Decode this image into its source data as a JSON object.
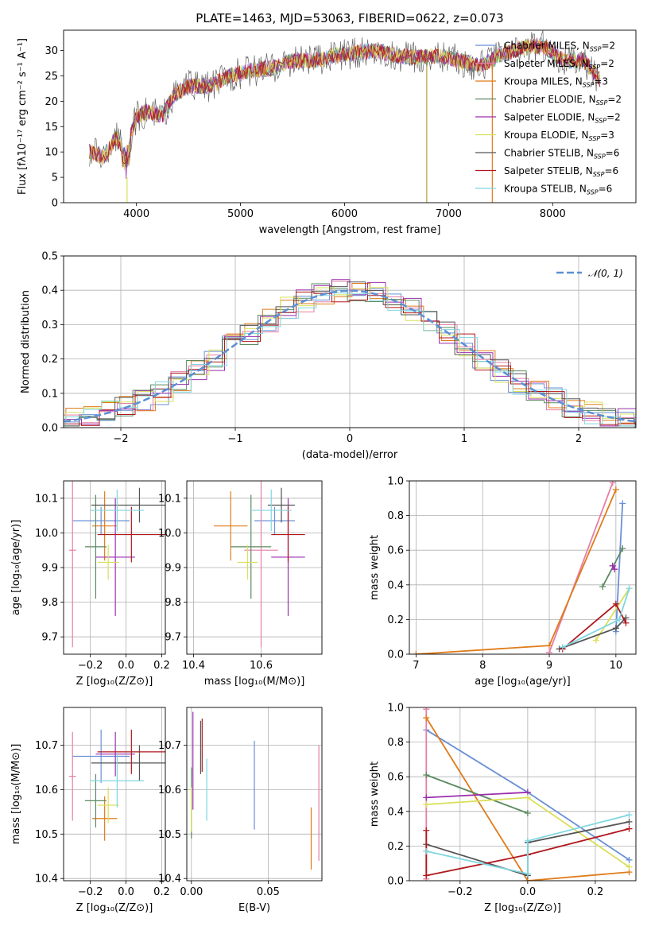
{
  "title": "PLATE=1463, MJD=53063, FIBERID=0622, z=0.073",
  "models": [
    {
      "name": "Chabrier MILES",
      "n": "2",
      "color": "#6a8fd6"
    },
    {
      "name": "Salpeter MILES",
      "n": "2",
      "color": "#e57fa6"
    },
    {
      "name": "Kroupa MILES",
      "n": "3",
      "color": "#e07b1a"
    },
    {
      "name": "Chabrier ELODIE",
      "n": "2",
      "color": "#5a8a60"
    },
    {
      "name": "Salpeter ELODIE",
      "n": "2",
      "color": "#9b2fae"
    },
    {
      "name": "Kroupa ELODIE",
      "n": "3",
      "color": "#d9e05a"
    },
    {
      "name": "Chabrier STELIB",
      "n": "6",
      "color": "#555555"
    },
    {
      "name": "Salpeter STELIB",
      "n": "6",
      "color": "#b0171c"
    },
    {
      "name": "Kroupa STELIB",
      "n": "6",
      "color": "#7fd6e0"
    }
  ],
  "legend_prefix": "N",
  "legend_sub": "SSP",
  "chart_data": [
    {
      "id": "spectrum",
      "type": "line",
      "xlabel": "wavelength [Angstrom, rest frame]",
      "ylabel": "Flux [fλ10⁻¹⁷ erg cm⁻² s⁻¹ A⁻¹]",
      "xlim": [
        3300,
        8800
      ],
      "ylim": [
        0,
        34
      ],
      "xticks": [
        "4000",
        "5000",
        "6000",
        "7000",
        "8000"
      ],
      "yticks": [
        "0",
        "5",
        "10",
        "15",
        "20",
        "25",
        "30"
      ],
      "envelope": [
        [
          3550,
          10
        ],
        [
          3700,
          9
        ],
        [
          3800,
          13
        ],
        [
          3900,
          10
        ],
        [
          4000,
          17
        ],
        [
          4100,
          18
        ],
        [
          4250,
          17
        ],
        [
          4350,
          21
        ],
        [
          4500,
          23
        ],
        [
          4700,
          23
        ],
        [
          4900,
          25
        ],
        [
          5100,
          26
        ],
        [
          5300,
          26.5
        ],
        [
          5500,
          28
        ],
        [
          5700,
          28
        ],
        [
          5900,
          29
        ],
        [
          6100,
          29.5
        ],
        [
          6300,
          30
        ],
        [
          6500,
          29
        ],
        [
          6700,
          28.5
        ],
        [
          6900,
          29
        ],
        [
          7100,
          28
        ],
        [
          7300,
          27
        ],
        [
          7500,
          29
        ],
        [
          7700,
          30.5
        ],
        [
          7900,
          31
        ],
        [
          8100,
          28
        ],
        [
          8300,
          28
        ],
        [
          8460,
          24
        ]
      ]
    },
    {
      "id": "residuals",
      "type": "histogram",
      "xlabel": "(data-model)/error",
      "ylabel": "Normed distribution",
      "xlim": [
        -2.5,
        2.5
      ],
      "ylim": [
        0,
        0.5
      ],
      "xticks": [
        "−2",
        "−1",
        "0",
        "1",
        "2"
      ],
      "yticks": [
        "0.0",
        "0.1",
        "0.2",
        "0.3",
        "0.4",
        "0.5"
      ],
      "reference_label": "𝒩(0, 1)",
      "reference": "normal(0,1)"
    },
    {
      "id": "age_vs_Z",
      "type": "scatter",
      "xlabel": "Z [log₁₀(Z/Z⊙)]",
      "ylabel": "age  [log₁₀(age/yr)]",
      "xlim": [
        -0.35,
        0.22
      ],
      "ylim": [
        9.65,
        10.15
      ],
      "xticks": [
        "−0.2",
        "0.0",
        "0.2"
      ],
      "yticks": [
        "9.7",
        "9.8",
        "9.9",
        "10.0",
        "10.1"
      ],
      "points": [
        {
          "x": -0.14,
          "xerr": 0.16,
          "y": 10.035,
          "yerr": 0.04
        },
        {
          "x": -0.3,
          "xerr": 0.02,
          "y": 9.95,
          "yerr": 0.28
        },
        {
          "x": -0.12,
          "xerr": 0.07,
          "y": 10.02,
          "yerr": 0.1
        },
        {
          "x": -0.17,
          "xerr": 0.06,
          "y": 9.96,
          "yerr": 0.15
        },
        {
          "x": -0.06,
          "xerr": 0.11,
          "y": 9.93,
          "yerr": 0.17
        },
        {
          "x": -0.1,
          "xerr": 0.06,
          "y": 9.915,
          "yerr": 0.05
        },
        {
          "x": 0.075,
          "xerr": 0.27,
          "y": 10.08,
          "yerr": 0.05
        },
        {
          "x": 0.03,
          "xerr": 0.19,
          "y": 9.995,
          "yerr": 0.08
        },
        {
          "x": -0.05,
          "xerr": 0.15,
          "y": 10.065,
          "yerr": 0.06
        }
      ]
    },
    {
      "id": "age_vs_mass",
      "type": "scatter",
      "xlabel": "mass [log₁₀(M/M⊙)]",
      "ylabel": "",
      "xlim": [
        10.38,
        10.78
      ],
      "ylim": [
        9.65,
        10.15
      ],
      "xticks": [
        "10.4",
        "10.6"
      ],
      "yticks": [
        "9.7",
        "9.8",
        "9.9",
        "10.0",
        "10.1"
      ],
      "points": [
        {
          "x": 10.64,
          "xerr": 0.06,
          "y": 10.035,
          "yerr": 0.04
        },
        {
          "x": 10.6,
          "xerr": 0.05,
          "y": 9.95,
          "yerr": 0.28
        },
        {
          "x": 10.51,
          "xerr": 0.05,
          "y": 10.02,
          "yerr": 0.1
        },
        {
          "x": 10.57,
          "xerr": 0.06,
          "y": 9.96,
          "yerr": 0.15
        },
        {
          "x": 10.68,
          "xerr": 0.05,
          "y": 9.93,
          "yerr": 0.17
        },
        {
          "x": 10.56,
          "xerr": 0.03,
          "y": 9.915,
          "yerr": 0.05
        },
        {
          "x": 10.66,
          "xerr": 0.04,
          "y": 10.08,
          "yerr": 0.05
        },
        {
          "x": 10.68,
          "xerr": 0.05,
          "y": 9.995,
          "yerr": 0.08
        },
        {
          "x": 10.63,
          "xerr": 0.06,
          "y": 10.065,
          "yerr": 0.06
        }
      ]
    },
    {
      "id": "weight_vs_age",
      "type": "line",
      "xlabel": "age  [log₁₀(age/yr)]",
      "ylabel": "mass weight",
      "xlim": [
        6.9,
        10.3
      ],
      "ylim": [
        0,
        1
      ],
      "xticks": [
        "7",
        "8",
        "9",
        "10"
      ],
      "yticks": [
        "0.0",
        "0.2",
        "0.4",
        "0.6",
        "0.8",
        "1.0"
      ],
      "series": [
        {
          "x": [
            10.0,
            10.1
          ],
          "y": [
            0.13,
            0.87
          ]
        },
        {
          "x": [
            9.0,
            9.95
          ],
          "y": [
            0.01,
            0.99
          ]
        },
        {
          "x": [
            7.0,
            9.0,
            10.0
          ],
          "y": [
            0.0,
            0.05,
            0.95
          ]
        },
        {
          "x": [
            9.8,
            10.1
          ],
          "y": [
            0.39,
            0.61
          ]
        },
        {
          "x": [
            9.95,
            9.98
          ],
          "y": [
            0.51,
            0.49
          ]
        },
        {
          "x": [
            9.7,
            10.2
          ],
          "y": [
            0.08,
            0.38
          ]
        },
        {
          "x": [
            9.15,
            10.0,
            10.15
          ],
          "y": [
            0.03,
            0.15,
            0.21
          ]
        },
        {
          "x": [
            9.2,
            10.0,
            10.15
          ],
          "y": [
            0.03,
            0.29,
            0.18
          ]
        },
        {
          "x": [
            9.2,
            10.05,
            10.2
          ],
          "y": [
            0.04,
            0.2,
            0.38
          ]
        }
      ]
    },
    {
      "id": "mass_vs_Z",
      "type": "scatter",
      "xlabel": "Z [log₁₀(Z/Z⊙)]",
      "ylabel": "mass [log₁₀(M/M⊙)]",
      "xlim": [
        -0.35,
        0.22
      ],
      "ylim": [
        10.395,
        10.785
      ],
      "xticks": [
        "−0.2",
        "0.0",
        "0.2"
      ],
      "yticks": [
        "10.4",
        "10.5",
        "10.6",
        "10.7"
      ],
      "points": [
        {
          "x": -0.14,
          "xerr": 0.16,
          "y": 10.675,
          "yerr": 0.06
        },
        {
          "x": -0.3,
          "xerr": 0.02,
          "y": 10.63,
          "yerr": 0.1
        },
        {
          "x": -0.12,
          "xerr": 0.07,
          "y": 10.535,
          "yerr": 0.05
        },
        {
          "x": -0.17,
          "xerr": 0.06,
          "y": 10.575,
          "yerr": 0.06
        },
        {
          "x": -0.06,
          "xerr": 0.11,
          "y": 10.68,
          "yerr": 0.05
        },
        {
          "x": -0.1,
          "xerr": 0.06,
          "y": 10.565,
          "yerr": 0.04
        },
        {
          "x": 0.075,
          "xerr": 0.27,
          "y": 10.66,
          "yerr": 0.04
        },
        {
          "x": 0.03,
          "xerr": 0.19,
          "y": 10.685,
          "yerr": 0.05
        },
        {
          "x": -0.05,
          "xerr": 0.15,
          "y": 10.62,
          "yerr": 0.06
        }
      ]
    },
    {
      "id": "mass_vs_ebv",
      "type": "scatter",
      "xlabel": "E(B-V)",
      "ylabel": "",
      "xlim": [
        -0.003,
        0.085
      ],
      "ylim": [
        10.395,
        10.785
      ],
      "xticks": [
        "0.00",
        "0.05"
      ],
      "yticks": [
        "10.4",
        "10.5",
        "10.6",
        "10.7"
      ],
      "points": [
        {
          "x": 0.041,
          "y": 10.61,
          "yerr": 0.1
        },
        {
          "x": 0.083,
          "y": 10.57,
          "yerr": 0.13
        },
        {
          "x": 0.078,
          "y": 10.49,
          "yerr": 0.07
        },
        {
          "x": 0.0,
          "y": 10.57,
          "yerr": 0.08
        },
        {
          "x": 0.001,
          "y": 10.665,
          "yerr": 0.11
        },
        {
          "x": 0.0,
          "y": 10.555,
          "yerr": 0.05
        },
        {
          "x": 0.006,
          "y": 10.695,
          "yerr": 0.06
        },
        {
          "x": 0.007,
          "y": 10.7,
          "yerr": 0.06
        },
        {
          "x": 0.01,
          "y": 10.6,
          "yerr": 0.07
        }
      ]
    },
    {
      "id": "weight_vs_Z",
      "type": "line",
      "xlabel": "Z [log₁₀(Z/Z⊙)]",
      "ylabel": "mass weight",
      "xlim": [
        -0.35,
        0.32
      ],
      "ylim": [
        0,
        1
      ],
      "xticks": [
        "−0.2",
        "0.0",
        "0.2"
      ],
      "yticks": [
        "0.0",
        "0.2",
        "0.4",
        "0.6",
        "0.8",
        "1.0"
      ],
      "series": [
        {
          "x": [
            -0.3,
            0.0,
            0.3
          ],
          "y": [
            0.87,
            0.51,
            0.12
          ]
        },
        {
          "x": [
            -0.3,
            -0.3
          ],
          "y": [
            0.99,
            0.01
          ]
        },
        {
          "x": [
            -0.3,
            0.0,
            0.3
          ],
          "y": [
            0.94,
            0.0,
            0.05
          ]
        },
        {
          "x": [
            -0.3,
            0.0
          ],
          "y": [
            0.61,
            0.39
          ]
        },
        {
          "x": [
            -0.3,
            0.0
          ],
          "y": [
            0.48,
            0.51
          ]
        },
        {
          "x": [
            -0.3,
            0.0,
            0.3
          ],
          "y": [
            0.44,
            0.48,
            0.08
          ]
        },
        {
          "x": [
            -0.3,
            0.0,
            0.0,
            0.3
          ],
          "y": [
            0.21,
            0.03,
            0.22,
            0.34
          ]
        },
        {
          "x": [
            -0.3,
            -0.3,
            0.0,
            0.3
          ],
          "y": [
            0.29,
            0.03,
            0.15,
            0.3
          ]
        },
        {
          "x": [
            -0.3,
            0.0,
            0.0,
            0.3
          ],
          "y": [
            0.17,
            0.04,
            0.23,
            0.38
          ]
        }
      ]
    }
  ]
}
